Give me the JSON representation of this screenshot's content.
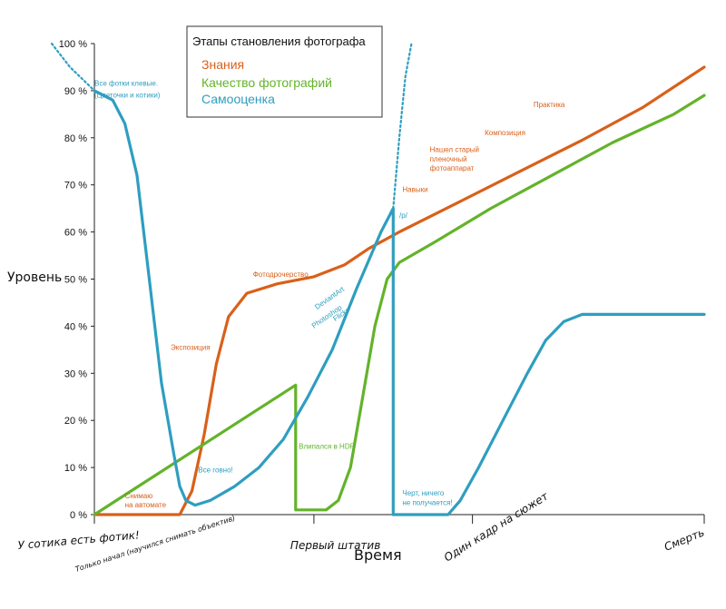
{
  "chart_data": {
    "type": "line",
    "title": "Этапы становления фотографа",
    "ylabel": "Уровень",
    "xlabel": "Время",
    "ylim": [
      0,
      100
    ],
    "y_ticks": [
      "0 %",
      "10 %",
      "20 %",
      "30 %",
      "40 %",
      "50 %",
      "60 %",
      "70 %",
      "80 %",
      "90 %",
      "100 %"
    ],
    "x_milestones": [
      {
        "label": "У сотика есть фотик!",
        "x": 0
      },
      {
        "label": "Первый штатив",
        "x": 36
      },
      {
        "label": "Один кадр на сюжет",
        "x": 62
      },
      {
        "label": "Смерть",
        "x": 100
      }
    ],
    "x_sublabel": "Только начал (научился снимать объектив)",
    "grid": false,
    "legend_position": "top-center",
    "series": [
      {
        "name": "Знания",
        "color": "#d9601a",
        "points": [
          [
            0,
            0
          ],
          [
            14,
            0
          ],
          [
            16,
            5
          ],
          [
            18,
            17
          ],
          [
            20,
            32
          ],
          [
            22,
            42
          ],
          [
            25,
            47
          ],
          [
            30,
            49
          ],
          [
            36,
            50.5
          ],
          [
            41,
            53
          ],
          [
            45,
            56.5
          ],
          [
            50,
            60
          ],
          [
            60,
            66.5
          ],
          [
            70,
            73
          ],
          [
            80,
            79.5
          ],
          [
            90,
            86.5
          ],
          [
            100,
            95
          ]
        ]
      },
      {
        "name": "Качество фотографий",
        "color": "#63b32a",
        "points": [
          [
            0,
            0
          ],
          [
            33,
            27.5
          ],
          [
            33,
            1
          ],
          [
            38,
            1
          ],
          [
            40,
            3
          ],
          [
            42,
            10
          ],
          [
            44,
            25
          ],
          [
            46,
            40
          ],
          [
            48,
            50
          ],
          [
            50,
            53.5
          ],
          [
            56,
            58
          ],
          [
            65,
            65
          ],
          [
            75,
            72
          ],
          [
            85,
            79
          ],
          [
            95,
            85
          ],
          [
            100,
            89
          ]
        ]
      },
      {
        "name": "Самооценка",
        "color": "#2e9ec0",
        "points": [
          [
            0,
            90
          ],
          [
            3,
            88
          ],
          [
            5,
            83
          ],
          [
            7,
            72
          ],
          [
            9,
            50
          ],
          [
            11,
            28
          ],
          [
            13,
            13
          ],
          [
            14,
            6
          ],
          [
            15,
            3
          ],
          [
            16.5,
            2
          ],
          [
            19,
            3
          ],
          [
            23,
            6
          ],
          [
            27,
            10
          ],
          [
            31,
            16
          ],
          [
            35,
            25
          ],
          [
            39,
            35
          ],
          [
            43,
            48
          ],
          [
            47,
            60
          ],
          [
            49,
            65
          ],
          [
            49,
            0
          ],
          [
            58,
            0
          ],
          [
            60,
            3
          ],
          [
            63,
            10
          ],
          [
            67,
            20
          ],
          [
            71,
            30
          ],
          [
            74,
            37
          ],
          [
            77,
            41
          ],
          [
            80,
            42.5
          ],
          [
            85,
            42.5
          ],
          [
            100,
            42.5
          ]
        ],
        "dotted_extensions": [
          [
            [
              -7,
              100
            ],
            [
              -4,
              95
            ],
            [
              0,
              90
            ]
          ],
          [
            [
              49,
              65
            ],
            [
              50,
              80
            ],
            [
              51,
              93
            ],
            [
              52,
              100
            ]
          ]
        ]
      }
    ],
    "annotations": [
      {
        "text": "Все фотки клевые.",
        "x": 0,
        "y": 91,
        "color": "#2e9ec0"
      },
      {
        "text": "(Цветочки и котики)",
        "x": 0,
        "y": 88.5,
        "color": "#2e9ec0"
      },
      {
        "text": "Экспозиция",
        "x": 12.5,
        "y": 35,
        "color": "#d9601a"
      },
      {
        "text": "Фотодрочерство",
        "x": 26,
        "y": 50.5,
        "color": "#d9601a"
      },
      {
        "text": "Навыки",
        "x": 50.5,
        "y": 68.5,
        "color": "#d9601a"
      },
      {
        "text": "Нашел старый",
        "x": 55,
        "y": 77,
        "color": "#d9601a"
      },
      {
        "text": "пленочный",
        "x": 55,
        "y": 75,
        "color": "#d9601a"
      },
      {
        "text": "фотоаппарат",
        "x": 55,
        "y": 73,
        "color": "#d9601a"
      },
      {
        "text": "Композиция",
        "x": 64,
        "y": 80.5,
        "color": "#d9601a"
      },
      {
        "text": "Практика",
        "x": 72,
        "y": 86.5,
        "color": "#d9601a"
      },
      {
        "text": "Снимаю",
        "x": 5,
        "y": 3.5,
        "color": "#d9601a"
      },
      {
        "text": "на автомате",
        "x": 5,
        "y": 1.5,
        "color": "#d9601a"
      },
      {
        "text": "Все говно!",
        "x": 17,
        "y": 9,
        "color": "#2e9ec0"
      },
      {
        "text": "Влипался в HDR",
        "x": 33.5,
        "y": 14,
        "color": "#63b32a"
      },
      {
        "text": "/p/",
        "x": 50,
        "y": 63,
        "color": "#2e9ec0"
      },
      {
        "text": "Черт, ничего",
        "x": 50.5,
        "y": 4,
        "color": "#2e9ec0"
      },
      {
        "text": "не получается!",
        "x": 50.5,
        "y": 2,
        "color": "#2e9ec0"
      },
      {
        "text": "DeviantArt",
        "x": 36.5,
        "y": 43.5,
        "color": "#2e9ec0",
        "rotate": -35
      },
      {
        "text": "Photoshop",
        "x": 36,
        "y": 39.5,
        "color": "#2e9ec0",
        "rotate": -35
      },
      {
        "text": "Flickr",
        "x": 39.5,
        "y": 41,
        "color": "#2e9ec0",
        "rotate": -35
      }
    ]
  }
}
